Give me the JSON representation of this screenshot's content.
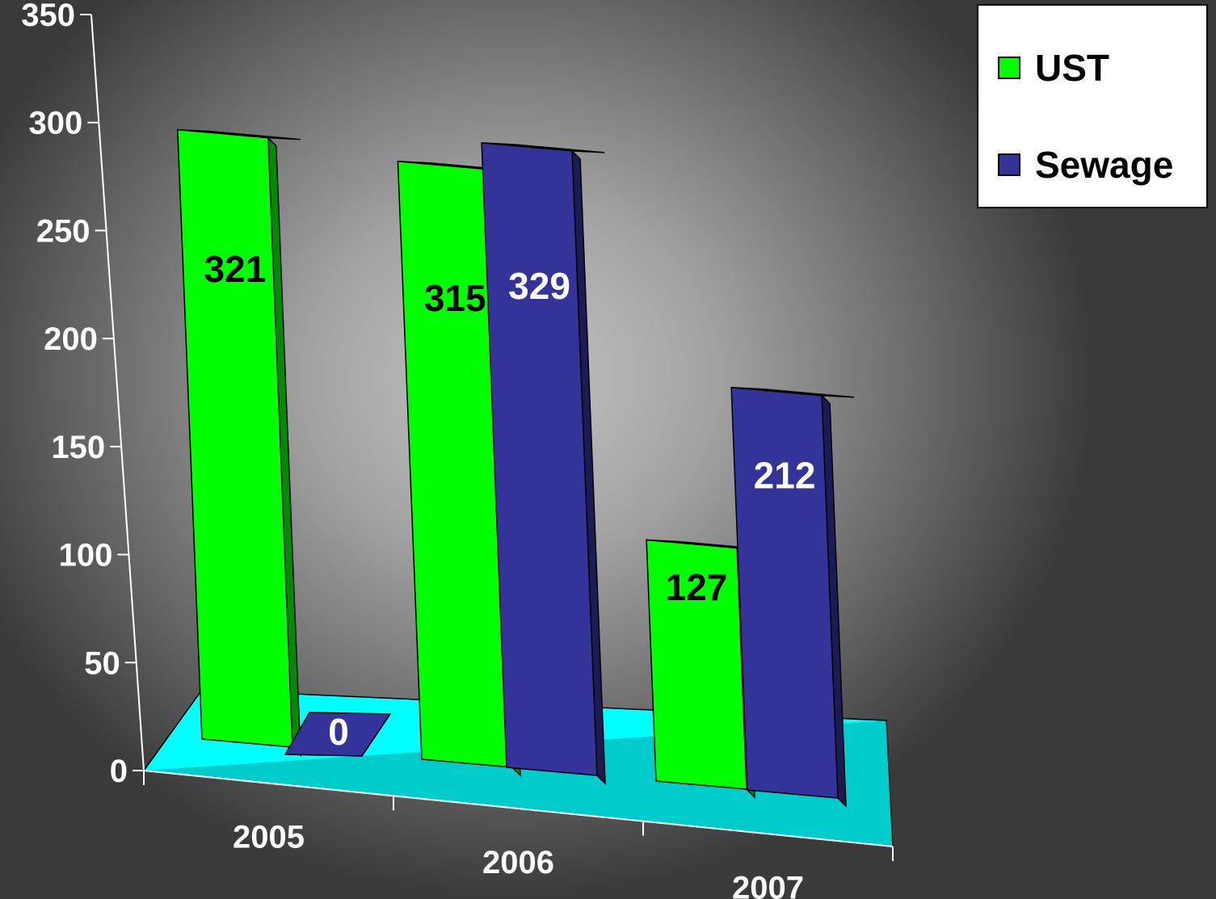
{
  "chart_data": {
    "type": "bar",
    "categories": [
      "2005",
      "2006",
      "2007"
    ],
    "series": [
      {
        "name": "UST",
        "values": [
          321,
          315,
          127
        ],
        "color": "#00ff00",
        "label_color": "#000000"
      },
      {
        "name": "Sewage",
        "values": [
          0,
          329,
          212
        ],
        "color": "#333399",
        "label_color": "#ffffff"
      }
    ],
    "ylim": [
      0,
      350
    ],
    "y_ticks": [
      "0",
      "50",
      "100",
      "150",
      "200",
      "250",
      "300",
      "350"
    ],
    "grid": false,
    "legend": "top-right",
    "floor_color": "#00ffff",
    "three_d": true
  }
}
